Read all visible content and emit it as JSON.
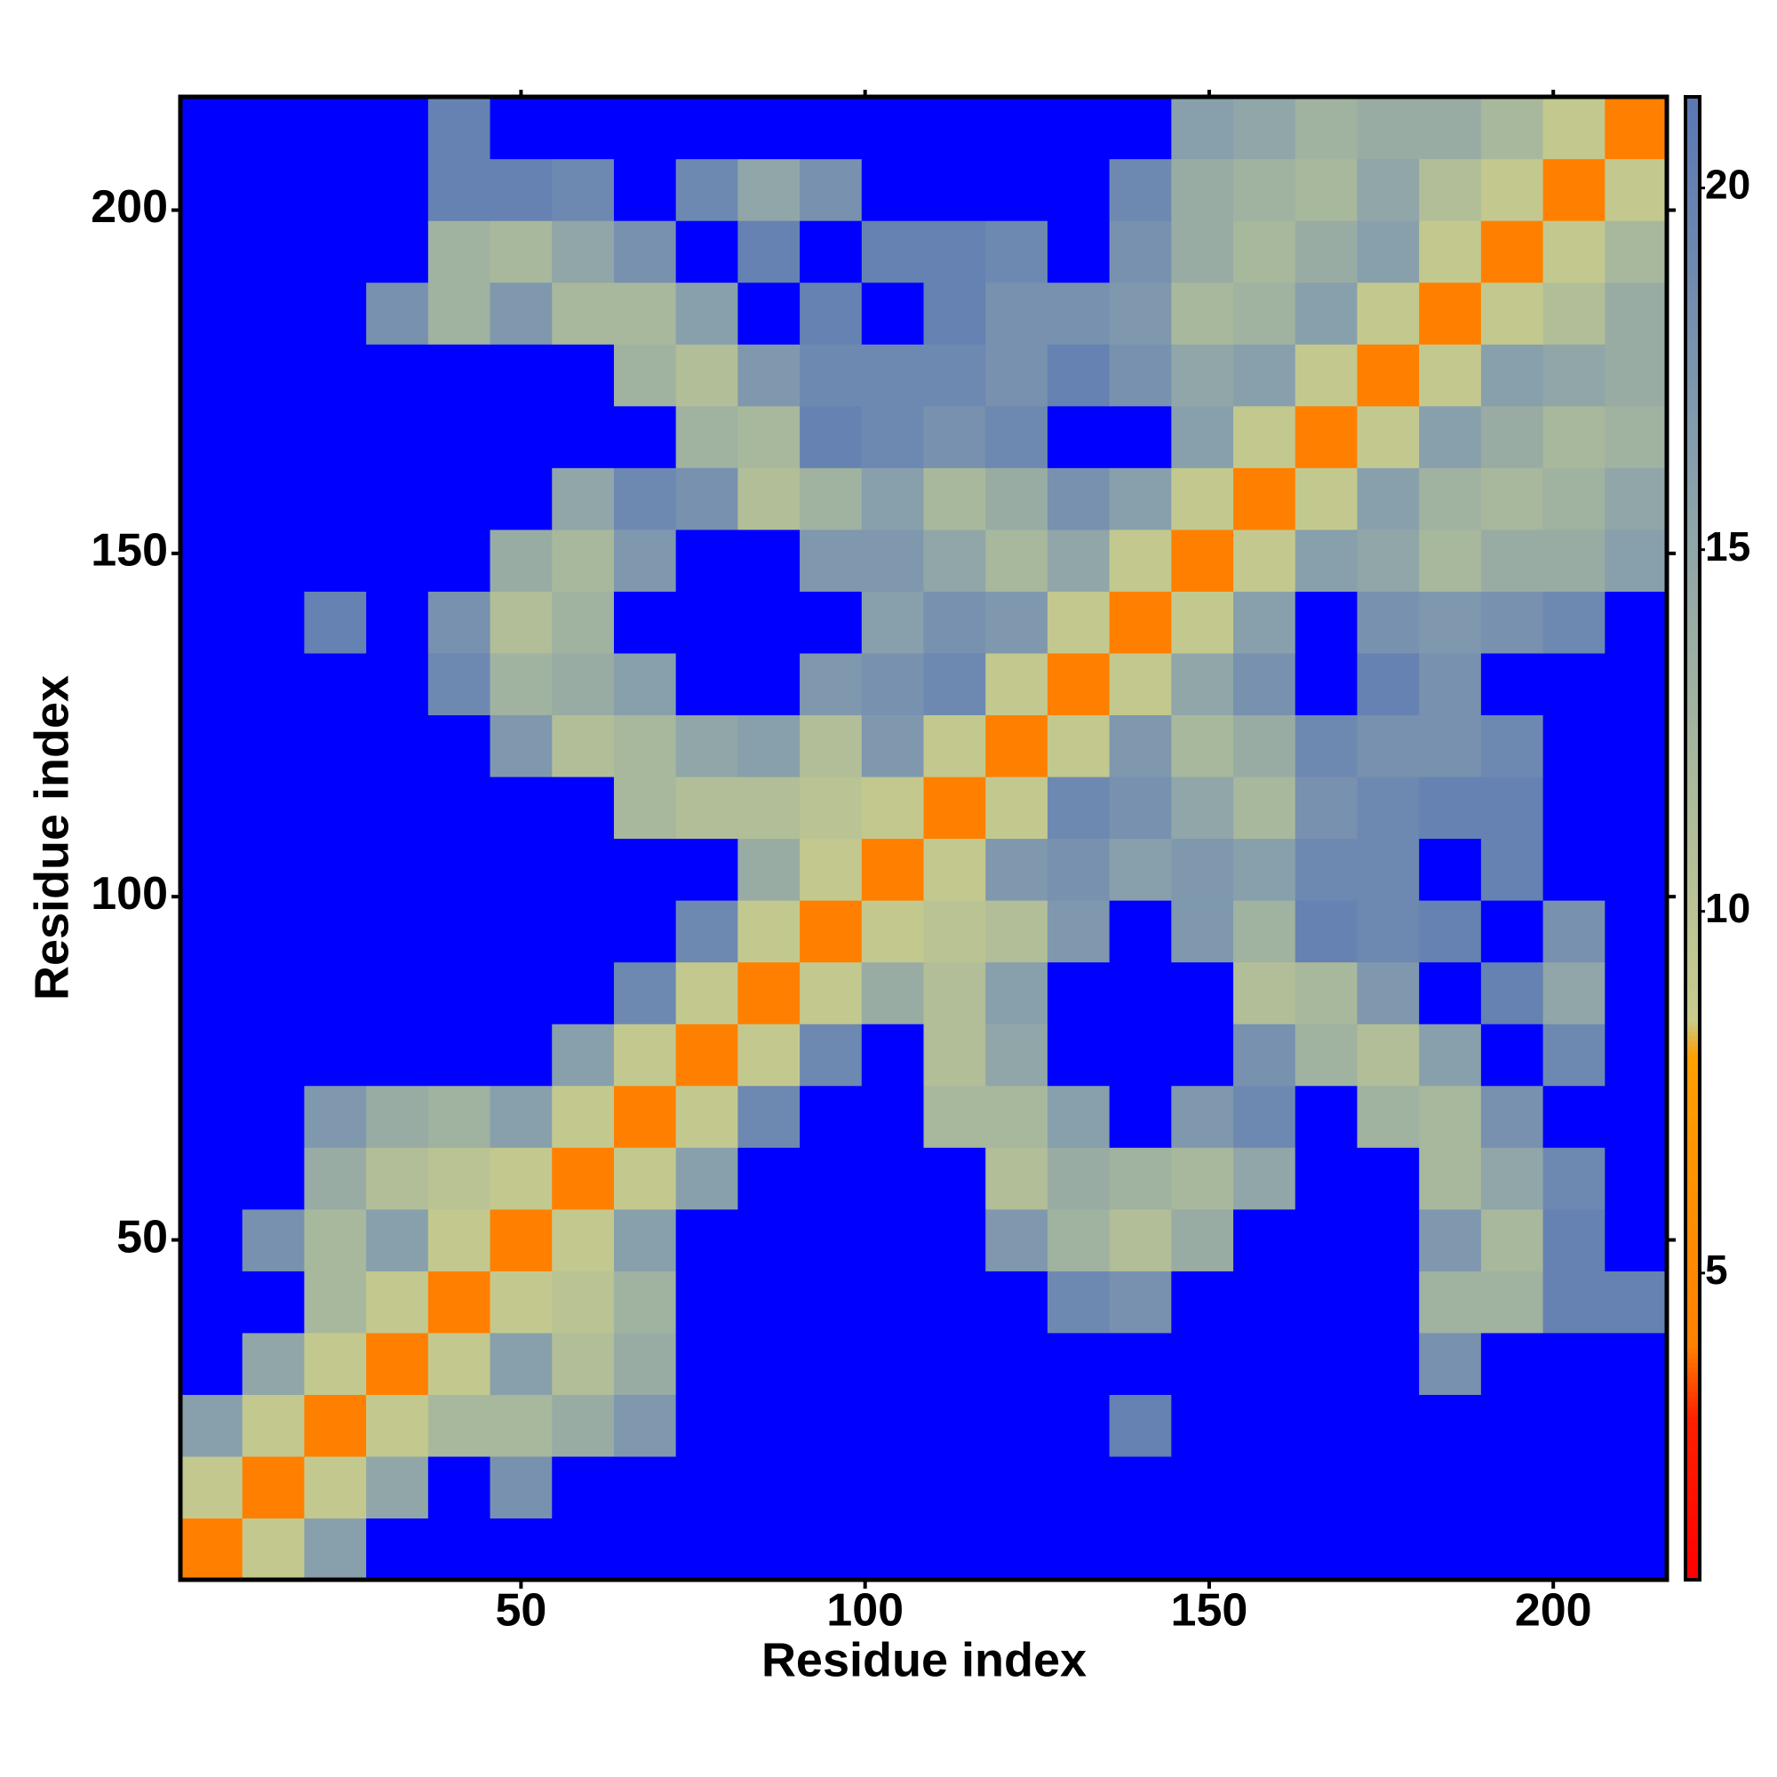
{
  "chart_data": {
    "type": "heatmap",
    "xlabel": "Residue index",
    "ylabel": "Residue index",
    "x_edges": [
      0.5,
      9.5,
      18.5,
      27.5,
      36.5,
      45.5,
      54.5,
      63.5,
      72.5,
      81.5,
      90.5,
      99.5,
      108.5,
      117.5,
      126.5,
      135.5,
      144.5,
      153.5,
      162.5,
      171.5,
      180.5,
      189.5,
      198.5,
      207.5,
      216.5
    ],
    "y_edges": [
      0.5,
      9.5,
      18.5,
      27.5,
      36.5,
      45.5,
      54.5,
      63.5,
      72.5,
      81.5,
      90.5,
      99.5,
      108.5,
      117.5,
      126.5,
      135.5,
      144.5,
      153.5,
      162.5,
      171.5,
      180.5,
      189.5,
      198.5,
      207.5,
      216.5
    ],
    "z": [
      [
        4,
        9,
        16,
        22,
        22,
        22,
        22,
        22,
        22,
        22,
        22,
        22,
        22,
        22,
        22,
        22,
        22,
        22,
        22,
        22,
        22,
        22,
        22,
        22
      ],
      [
        9,
        4,
        9,
        15,
        22,
        18,
        22,
        22,
        22,
        22,
        22,
        22,
        22,
        22,
        22,
        22,
        22,
        22,
        22,
        22,
        22,
        22,
        22,
        22
      ],
      [
        16,
        9,
        4,
        9,
        12,
        12,
        14,
        17,
        22,
        22,
        22,
        22,
        22,
        22,
        22,
        20,
        22,
        22,
        22,
        22,
        22,
        22,
        22,
        22
      ],
      [
        22,
        15,
        9,
        4,
        9,
        16,
        11,
        14,
        22,
        22,
        22,
        22,
        22,
        22,
        22,
        22,
        22,
        22,
        22,
        22,
        18,
        22,
        22,
        22
      ],
      [
        22,
        22,
        12,
        9,
        4,
        9,
        10,
        13,
        22,
        22,
        22,
        22,
        22,
        22,
        19,
        18,
        22,
        22,
        22,
        22,
        13,
        13,
        20,
        20
      ],
      [
        22,
        18,
        12,
        16,
        9,
        4,
        9,
        16,
        22,
        22,
        22,
        22,
        22,
        17,
        13,
        11,
        14,
        22,
        22,
        22,
        17,
        12,
        20,
        22
      ],
      [
        22,
        22,
        14,
        11,
        10,
        9,
        4,
        9,
        16,
        22,
        22,
        22,
        22,
        11,
        14,
        13,
        12,
        15,
        22,
        22,
        12,
        15,
        19,
        22
      ],
      [
        22,
        22,
        17,
        14,
        13,
        16,
        9,
        4,
        9,
        19,
        22,
        22,
        12,
        12,
        16,
        22,
        17,
        19,
        22,
        13,
        12,
        18,
        22,
        22
      ],
      [
        22,
        22,
        22,
        22,
        22,
        22,
        16,
        9,
        4,
        9,
        19,
        22,
        11,
        15,
        22,
        22,
        22,
        18,
        13,
        11,
        16,
        22,
        19,
        22
      ],
      [
        22,
        22,
        22,
        22,
        22,
        22,
        22,
        19,
        9,
        4,
        9,
        14,
        11,
        16,
        22,
        22,
        22,
        11,
        12,
        17,
        22,
        20,
        15,
        22
      ],
      [
        22,
        22,
        22,
        22,
        22,
        22,
        22,
        22,
        19,
        9,
        4,
        9,
        10,
        11,
        17,
        22,
        17,
        13,
        20,
        19,
        20,
        22,
        18,
        22
      ],
      [
        22,
        22,
        22,
        22,
        22,
        22,
        22,
        22,
        22,
        14,
        9,
        4,
        9,
        17,
        18,
        16,
        17,
        16,
        19,
        19,
        22,
        20,
        22,
        22
      ],
      [
        22,
        22,
        22,
        22,
        22,
        22,
        22,
        12,
        11,
        11,
        10,
        9,
        4,
        9,
        19,
        18,
        15,
        12,
        18,
        19,
        20,
        20,
        22,
        22
      ],
      [
        22,
        22,
        22,
        22,
        22,
        17,
        11,
        12,
        15,
        16,
        11,
        17,
        9,
        4,
        9,
        17,
        12,
        14,
        19,
        18,
        18,
        19,
        22,
        22
      ],
      [
        22,
        22,
        22,
        22,
        19,
        13,
        14,
        16,
        22,
        22,
        17,
        18,
        19,
        9,
        4,
        9,
        15,
        18,
        22,
        20,
        18,
        22,
        22,
        22
      ],
      [
        22,
        22,
        20,
        22,
        18,
        11,
        13,
        22,
        22,
        22,
        22,
        16,
        18,
        17,
        9,
        4,
        9,
        16,
        22,
        18,
        17,
        18,
        19,
        22
      ],
      [
        22,
        22,
        22,
        22,
        22,
        14,
        12,
        17,
        22,
        22,
        17,
        17,
        15,
        12,
        15,
        9,
        4,
        9,
        16,
        15,
        12,
        14,
        14,
        16
      ],
      [
        22,
        22,
        22,
        22,
        22,
        22,
        15,
        19,
        18,
        11,
        13,
        16,
        12,
        14,
        18,
        16,
        9,
        4,
        9,
        16,
        13,
        12,
        13,
        15
      ],
      [
        22,
        22,
        22,
        22,
        22,
        22,
        22,
        22,
        13,
        12,
        20,
        19,
        18,
        19,
        22,
        22,
        16,
        9,
        4,
        9,
        16,
        14,
        12,
        13
      ],
      [
        22,
        22,
        22,
        22,
        22,
        22,
        22,
        13,
        11,
        17,
        19,
        19,
        19,
        18,
        20,
        18,
        15,
        16,
        9,
        4,
        9,
        16,
        15,
        14
      ],
      [
        22,
        22,
        22,
        18,
        13,
        17,
        12,
        12,
        16,
        22,
        20,
        22,
        20,
        18,
        18,
        17,
        12,
        13,
        16,
        9,
        4,
        9,
        11,
        14
      ],
      [
        22,
        22,
        22,
        22,
        13,
        12,
        15,
        18,
        22,
        20,
        22,
        20,
        20,
        19,
        22,
        18,
        14,
        12,
        14,
        16,
        9,
        4,
        9,
        12
      ],
      [
        22,
        22,
        22,
        22,
        20,
        20,
        19,
        22,
        19,
        15,
        18,
        22,
        22,
        22,
        22,
        19,
        14,
        13,
        12,
        15,
        11,
        9,
        4,
        9
      ],
      [
        22,
        22,
        22,
        22,
        20,
        22,
        22,
        22,
        22,
        22,
        22,
        22,
        22,
        22,
        22,
        22,
        16,
        15,
        13,
        14,
        14,
        12,
        9,
        4
      ]
    ],
    "xlim": [
      0.5,
      216.5
    ],
    "ylim": [
      0.5,
      216.5
    ],
    "xticks": [
      50,
      100,
      150,
      200
    ],
    "yticks": [
      50,
      100,
      150,
      200
    ],
    "colorbar_lim": [
      0.76,
      21.26
    ],
    "colorbar_ticks": [
      5,
      10,
      15,
      20
    ],
    "colorscale": [
      {
        "value": 0.76,
        "color": "#ff0000"
      },
      {
        "value": 3,
        "color": "#ff2000"
      },
      {
        "value": 4,
        "color": "#ff8000"
      },
      {
        "value": 8,
        "color": "#ffa000"
      },
      {
        "value": 8.5,
        "color": "#c8cc8c"
      },
      {
        "value": 12,
        "color": "#a8b89c"
      },
      {
        "value": 16,
        "color": "#88a0ac"
      },
      {
        "value": 21.26,
        "color": "#5a78b4"
      }
    ],
    "over_color": "#0000ff"
  }
}
